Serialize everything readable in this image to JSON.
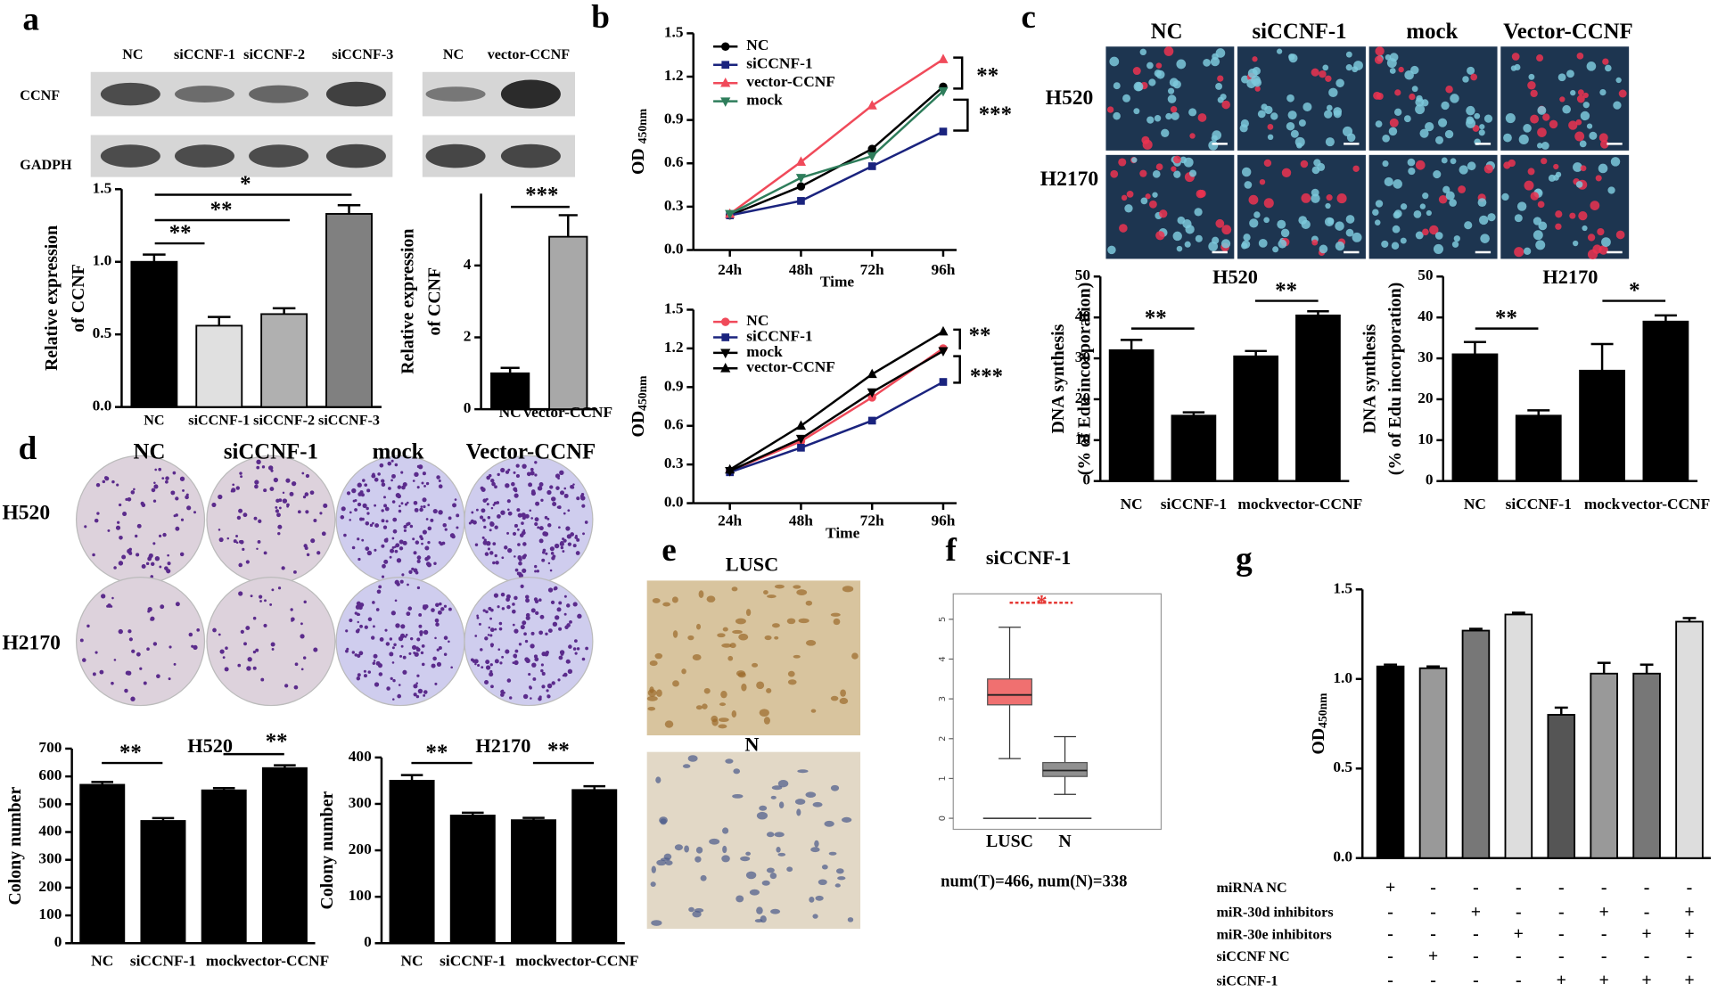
{
  "chart_data": [
    {
      "panel": "a",
      "type": "bar",
      "ylabel": [
        "Relative expression",
        "of CCNF"
      ],
      "categories": [
        "NC",
        "siCCNF-1",
        "siCCNF-2",
        "siCCNF-3"
      ],
      "values": [
        1.0,
        0.56,
        0.64,
        1.33
      ],
      "errors": [
        0.05,
        0.06,
        0.04,
        0.06
      ],
      "colors": [
        "#000000",
        "#e0e0e0",
        "#b0b0b0",
        "#808080"
      ],
      "ylim": [
        0,
        1.5
      ],
      "yticks": [
        {
          "value": 0,
          "label": "0.0"
        },
        0.5,
        {
          "value": 1,
          "label": "1.0"
        },
        1.5
      ],
      "annotations": [
        "**",
        "**",
        "*"
      ],
      "blot": {
        "lanes": [
          "NC",
          "siCCNF-1",
          "siCCNF-2",
          "siCCNF-3"
        ],
        "rows": [
          "CCNF",
          "GADPH"
        ]
      }
    },
    {
      "type": "bar",
      "ylabel": [
        "Relative expression",
        "of CCNF"
      ],
      "categories": [
        "NC",
        "vector-CCNF"
      ],
      "values": [
        1.0,
        4.8
      ],
      "errors": [
        0.15,
        0.6
      ],
      "colors": [
        "#000000",
        "#a8a8a8"
      ],
      "ylim": [
        0,
        6
      ],
      "yticks": [
        0,
        2,
        4
      ],
      "annotations": [
        "***"
      ],
      "blot": {
        "lanes": [
          "NC",
          "vector-CCNF"
        ]
      }
    },
    {
      "panel": "b",
      "type": "line",
      "ylabel": "OD ",
      "ylabel_sub": "450nm",
      "xlabel": "Time",
      "categories": [
        "24h",
        "48h",
        "72h",
        "96h"
      ],
      "series": [
        {
          "name": "NC",
          "color": "#000000",
          "marker": "circle",
          "values": [
            0.24,
            0.44,
            0.7,
            1.13
          ]
        },
        {
          "name": "siCCNF-1",
          "color": "#1a237e",
          "marker": "square",
          "values": [
            0.24,
            0.34,
            0.58,
            0.82
          ]
        },
        {
          "name": "vector-CCNF",
          "color": "#f04a5a",
          "marker": "triangle",
          "values": [
            0.25,
            0.61,
            1.0,
            1.32
          ]
        },
        {
          "name": "mock",
          "color": "#2e7d5b",
          "marker": "triangle-down",
          "values": [
            0.25,
            0.5,
            0.65,
            1.1
          ]
        }
      ],
      "ylim": [
        0,
        1.5
      ],
      "yticks": [
        {
          "value": 0,
          "label": "0.0"
        },
        0.3,
        0.6,
        0.9,
        1.2,
        1.5
      ],
      "annotations": [
        "**",
        "***"
      ]
    },
    {
      "type": "line",
      "ylabel": "OD",
      "ylabel_sub": "450nm",
      "xlabel": "Time",
      "categories": [
        "24h",
        "48h",
        "72h",
        "96h"
      ],
      "series": [
        {
          "name": "NC",
          "color": "#f04a5a",
          "marker": "circle",
          "values": [
            0.25,
            0.48,
            0.82,
            1.2
          ]
        },
        {
          "name": "siCCNF-1",
          "color": "#1a237e",
          "marker": "square",
          "values": [
            0.24,
            0.43,
            0.64,
            0.94
          ]
        },
        {
          "name": "mock",
          "color": "#000000",
          "marker": "triangle-down",
          "values": [
            0.25,
            0.5,
            0.86,
            1.18
          ]
        },
        {
          "name": "vector-CCNF",
          "color": "#000000",
          "marker": "triangle",
          "values": [
            0.26,
            0.6,
            1.0,
            1.33
          ]
        }
      ],
      "ylim": [
        0,
        1.5
      ],
      "yticks": [
        {
          "value": 0,
          "label": "0.0"
        },
        0.3,
        0.6,
        0.9,
        1.2,
        1.5
      ],
      "annotations": [
        "**",
        "***"
      ]
    },
    {
      "panel": "c",
      "type": "bar",
      "title": "H520",
      "ylabel": [
        "DNA synthesis",
        "(% of Edu incorporation)"
      ],
      "categories": [
        "NC",
        "siCCNF-1",
        "mock",
        "vector-CCNF"
      ],
      "values": [
        32,
        16,
        30.5,
        40.5
      ],
      "errors": [
        2.5,
        0.8,
        1.3,
        1.0
      ],
      "color": "#000000",
      "ylim": [
        0,
        50
      ],
      "yticks": [
        0,
        10,
        20,
        30,
        40,
        50
      ],
      "annotations": [
        "**",
        "**"
      ]
    },
    {
      "type": "bar",
      "title": "H2170",
      "ylabel": [
        "DNA synthesis",
        "(% of Edu incorporation)"
      ],
      "categories": [
        "NC",
        "siCCNF-1",
        "mock",
        "vector-CCNF"
      ],
      "values": [
        31,
        16,
        27,
        39
      ],
      "errors": [
        3,
        1.3,
        6.5,
        1.5
      ],
      "color": "#000000",
      "ylim": [
        0,
        50
      ],
      "yticks": [
        0,
        10,
        20,
        30,
        40,
        50
      ],
      "annotations": [
        "**",
        "*"
      ]
    },
    {
      "panel": "d",
      "type": "bar",
      "title": "H520",
      "ylabel": [
        "Colony number"
      ],
      "categories": [
        "NC",
        "siCCNF-1",
        "mock",
        "vector-CCNF"
      ],
      "values": [
        570,
        440,
        550,
        630
      ],
      "errors": [
        10,
        10,
        8,
        10
      ],
      "color": "#000000",
      "ylim": [
        0,
        700
      ],
      "yticks": [
        0,
        100,
        200,
        300,
        400,
        500,
        600,
        700
      ],
      "annotations": [
        "**",
        "**"
      ]
    },
    {
      "type": "bar",
      "title": "H2170",
      "ylabel": [
        "Colony number"
      ],
      "categories": [
        "NC",
        "siCCNF-1",
        "mock",
        "vector-CCNF"
      ],
      "values": [
        350,
        275,
        265,
        330
      ],
      "errors": [
        12,
        6,
        5,
        8
      ],
      "color": "#000000",
      "ylim": [
        0,
        400
      ],
      "yticks": [
        0,
        100,
        200,
        300,
        400
      ],
      "annotations": [
        "**",
        "**"
      ]
    },
    {
      "panel": "f",
      "type": "box",
      "title": "siCCNF-1",
      "categories": [
        "LUSC",
        "N"
      ],
      "boxes": [
        {
          "min": 1.5,
          "q1": 2.85,
          "median": 3.1,
          "q3": 3.5,
          "max": 4.8
        },
        {
          "min": 0.6,
          "q1": 1.05,
          "median": 1.2,
          "q3": 1.4,
          "max": 2.05
        }
      ],
      "colors": [
        "#f07070",
        "#909090"
      ],
      "ylim": [
        0,
        5.5
      ],
      "yticks": [
        0,
        1,
        2,
        3,
        4,
        5
      ],
      "annotations": [
        "*"
      ],
      "annotation_color": "#e53935",
      "caption": "num(T)=466, num(N)=338"
    },
    {
      "panel": "g",
      "type": "bar",
      "ylabel": "OD",
      "ylabel_sub": "450nm",
      "categories": [
        null,
        null,
        null,
        null,
        null,
        null,
        null,
        null
      ],
      "values": [
        1.07,
        1.06,
        1.27,
        1.36,
        0.8,
        1.03,
        1.03,
        1.32
      ],
      "errors": [
        0.01,
        0.01,
        0.01,
        0.01,
        0.04,
        0.06,
        0.05,
        0.02
      ],
      "colors": [
        "#000000",
        "#999999",
        "#777777",
        "#dddddd",
        "#555555",
        "#999999",
        "#777777",
        "#dddddd"
      ],
      "ylim": [
        0,
        1.5
      ],
      "yticks": [
        {
          "value": 0,
          "label": "0.0"
        },
        0.5,
        {
          "value": 1,
          "label": "1.0"
        },
        1.5
      ],
      "conditions": [
        {
          "label": "miRNA NC",
          "signs": [
            "+",
            "-",
            "-",
            "-",
            "-",
            "-",
            "-",
            "-"
          ]
        },
        {
          "label": "miR-30d inhibitors",
          "signs": [
            "-",
            "-",
            "+",
            "-",
            "-",
            "+",
            "-",
            "+"
          ]
        },
        {
          "label": "miR-30e inhibitors",
          "signs": [
            "-",
            "-",
            "-",
            "+",
            "-",
            "-",
            "+",
            "+"
          ]
        },
        {
          "label": "siCCNF NC",
          "signs": [
            "-",
            "+",
            "-",
            "-",
            "-",
            "-",
            "-",
            "-"
          ]
        },
        {
          "label": "siCCNF-1",
          "signs": [
            "-",
            "-",
            "-",
            "-",
            "+",
            "+",
            "+",
            "+"
          ]
        }
      ]
    }
  ],
  "images": {
    "c": {
      "columns": [
        "NC",
        "siCCNF-1",
        "mock",
        "Vector-CCNF"
      ],
      "rows": [
        "H520",
        "H2170"
      ]
    },
    "d": {
      "columns": [
        "NC",
        "siCCNF-1",
        "mock",
        "Vector-CCNF"
      ],
      "rows": [
        "H520",
        "H2170"
      ]
    },
    "e": {
      "panel": "e",
      "labels": [
        "LUSC",
        "N"
      ]
    }
  }
}
